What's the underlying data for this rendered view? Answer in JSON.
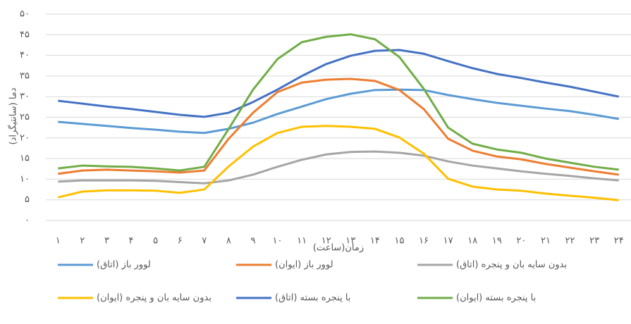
{
  "chart_data": {
    "type": "line",
    "y_label": "دما (سانتیگراد)",
    "x_label": "زمان(ساعت)",
    "categories": [
      "۱",
      "۲",
      "۳",
      "۴",
      "۵",
      "۶",
      "۷",
      "۸",
      "۹",
      "۱۰",
      "۱۱",
      "۱۲",
      "۱۳",
      "۱۴",
      "۱۵",
      "۱۶",
      "۱۷",
      "۱۸",
      "۱۹",
      "۲۰",
      "۲۱",
      "۲۲",
      "۲۳",
      "۲۴"
    ],
    "ylim": [
      0,
      50
    ],
    "yticks": [
      {
        "value": 0,
        "label": "۰"
      },
      {
        "value": 5,
        "label": "۵"
      },
      {
        "value": 10,
        "label": "۱۰"
      },
      {
        "value": 15,
        "label": "۱۵"
      },
      {
        "value": 20,
        "label": "۲۰"
      },
      {
        "value": 25,
        "label": "۲۵"
      },
      {
        "value": 30,
        "label": "۳۰"
      },
      {
        "value": 35,
        "label": "۳۵"
      },
      {
        "value": 40,
        "label": "۴۰"
      },
      {
        "value": 45,
        "label": "۴۵"
      },
      {
        "value": 50,
        "label": "۵۰"
      }
    ],
    "grid": true,
    "series": [
      {
        "name": "لوور باز  (اتاق)",
        "color": "#5b9bd5",
        "values": [
          23.9,
          23.4,
          22.9,
          22.4,
          22.0,
          21.5,
          21.2,
          22.2,
          23.7,
          25.8,
          27.6,
          29.4,
          30.7,
          31.6,
          31.7,
          31.6,
          30.4,
          29.4,
          28.5,
          27.8,
          27.1,
          26.5,
          25.6,
          24.6
        ]
      },
      {
        "name": "لوور باز  (ایوان)",
        "color": "#ed7d31",
        "values": [
          11.3,
          12.1,
          12.3,
          12.1,
          11.9,
          11.6,
          12.1,
          19.8,
          26.1,
          31.1,
          33.4,
          34.1,
          34.3,
          33.8,
          31.6,
          27.0,
          19.8,
          16.9,
          15.5,
          14.8,
          13.7,
          12.8,
          11.9,
          11.1
        ]
      },
      {
        "name": "بدون سایه بان و پنجره (اتاق)",
        "color": "#a5a5a5",
        "values": [
          9.4,
          9.7,
          9.7,
          9.7,
          9.6,
          9.3,
          9.0,
          9.7,
          11.1,
          13.0,
          14.7,
          16.0,
          16.6,
          16.7,
          16.4,
          15.7,
          14.3,
          13.3,
          12.6,
          11.9,
          11.3,
          10.8,
          10.2,
          9.7
        ]
      },
      {
        "name": "بدون سایه بان و پنجره (ایوان)",
        "color": "#ffc000",
        "values": [
          5.6,
          7.0,
          7.3,
          7.3,
          7.2,
          6.7,
          7.5,
          13.1,
          17.9,
          21.2,
          22.7,
          22.9,
          22.7,
          22.2,
          20.1,
          16.2,
          10.1,
          8.2,
          7.5,
          7.2,
          6.5,
          6.0,
          5.5,
          4.9
        ]
      },
      {
        "name": "با پنجره بسته (اتاق)",
        "color": "#4472c4",
        "values": [
          29.0,
          28.3,
          27.6,
          27.0,
          26.3,
          25.6,
          25.1,
          26.1,
          28.7,
          31.7,
          35.0,
          37.9,
          39.9,
          41.1,
          41.3,
          40.4,
          38.6,
          36.9,
          35.5,
          34.5,
          33.4,
          32.4,
          31.2,
          30.0
        ]
      },
      {
        "name": "با پنجره بسته (ایوان)",
        "color": "#70ad47",
        "values": [
          12.6,
          13.3,
          13.1,
          13.0,
          12.6,
          12.1,
          13.0,
          22.2,
          31.7,
          39.1,
          43.2,
          44.5,
          45.1,
          43.9,
          39.6,
          31.9,
          22.5,
          18.6,
          17.2,
          16.4,
          15.0,
          14.0,
          13.0,
          12.3
        ]
      }
    ]
  }
}
